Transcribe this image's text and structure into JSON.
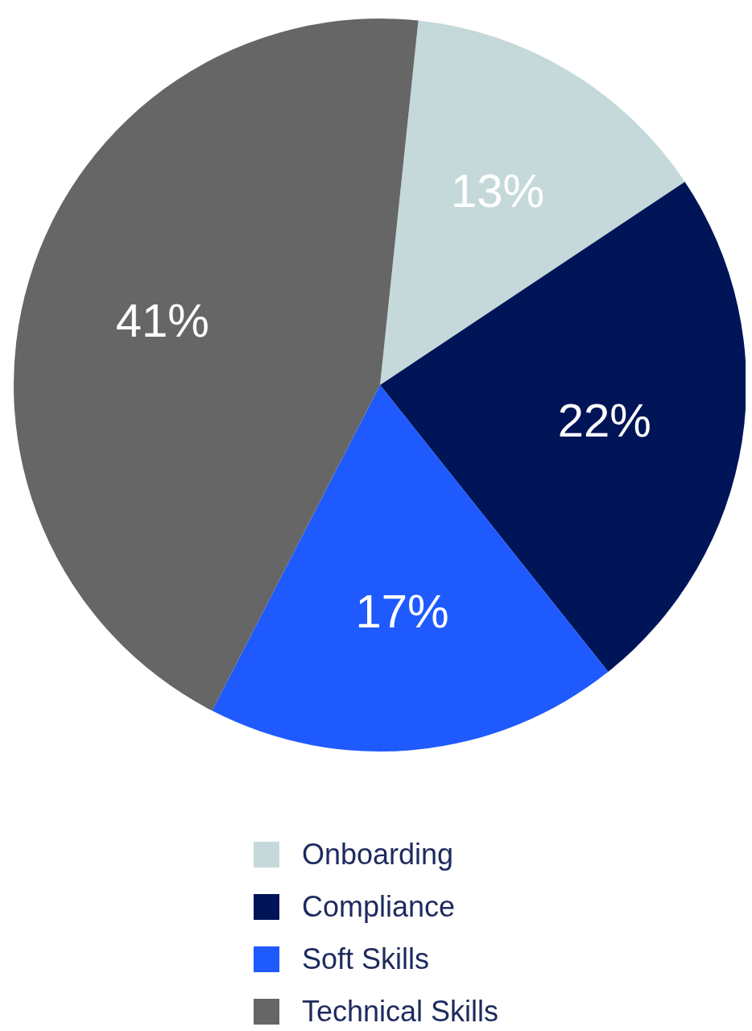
{
  "chart_data": {
    "type": "pie",
    "categories": [
      "Onboarding",
      "Compliance",
      "Soft Skills",
      "Technical Skills"
    ],
    "values": [
      13,
      22,
      17,
      41
    ],
    "colors": [
      "#c5d9da",
      "#001458",
      "#1f5aff",
      "#666666"
    ],
    "value_labels": [
      "13%",
      "22%",
      "17%",
      "41%"
    ],
    "legend": "bottom"
  }
}
